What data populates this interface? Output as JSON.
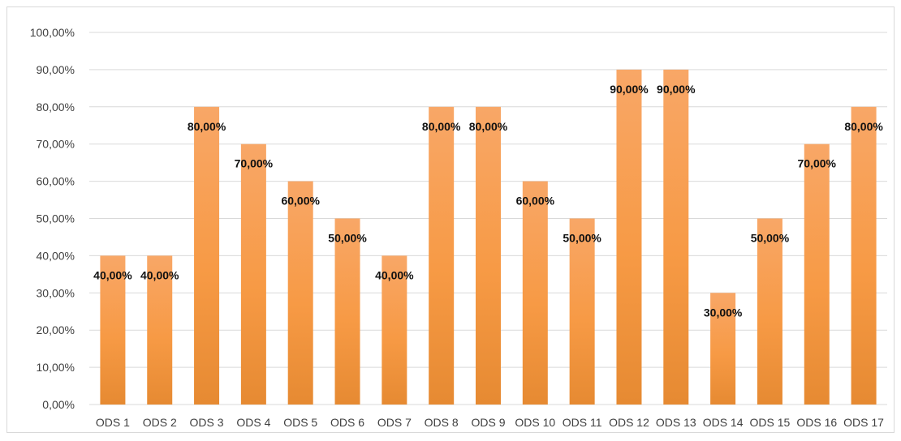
{
  "chart_data": {
    "type": "bar",
    "title": "",
    "xlabel": "",
    "ylabel": "",
    "categories": [
      "ODS 1",
      "ODS 2",
      "ODS 3",
      "ODS 4",
      "ODS 5",
      "ODS 6",
      "ODS 7",
      "ODS 8",
      "ODS 9",
      "ODS 10",
      "ODS 11",
      "ODS 12",
      "ODS 13",
      "ODS 14",
      "ODS 15",
      "ODS 16",
      "ODS 17"
    ],
    "values": [
      40,
      40,
      80,
      70,
      60,
      50,
      40,
      80,
      80,
      60,
      50,
      90,
      90,
      30,
      50,
      70,
      80
    ],
    "value_labels": [
      "40,00%",
      "40,00%",
      "80,00%",
      "70,00%",
      "60,00%",
      "50,00%",
      "40,00%",
      "80,00%",
      "80,00%",
      "60,00%",
      "50,00%",
      "90,00%",
      "90,00%",
      "30,00%",
      "50,00%",
      "70,00%",
      "80,00%"
    ],
    "ylim": [
      0,
      100
    ],
    "y_ticks": [
      0,
      10,
      20,
      30,
      40,
      50,
      60,
      70,
      80,
      90,
      100
    ],
    "y_tick_labels": [
      "0,00%",
      "10,00%",
      "20,00%",
      "30,00%",
      "40,00%",
      "50,00%",
      "60,00%",
      "70,00%",
      "80,00%",
      "90,00%",
      "100,00%"
    ],
    "grid": true,
    "legend": "none",
    "colors": {
      "bar_top": "#f8a767",
      "bar_mid": "#f79a45",
      "bar_bottom": "#e68a32",
      "grid": "#d9d9d9",
      "label": "#404040"
    }
  }
}
